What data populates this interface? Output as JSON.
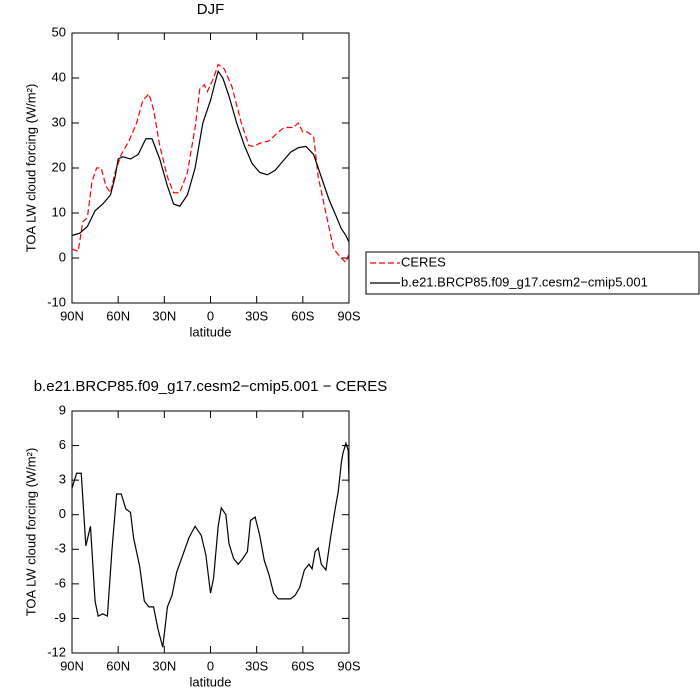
{
  "chart_data": [
    {
      "type": "line",
      "title": "DJF",
      "xlabel": "latitude",
      "ylabel": "TOA LW cloud forcing (W/m²)",
      "xlim": [
        90,
        -90
      ],
      "ylim": [
        -10,
        50
      ],
      "xticks": [
        {
          "value": 90,
          "label": "90N"
        },
        {
          "value": 60,
          "label": "60N"
        },
        {
          "value": 30,
          "label": "30N"
        },
        0,
        {
          "value": -30,
          "label": "30S"
        },
        {
          "value": -60,
          "label": "60S"
        },
        {
          "value": -90,
          "label": "90S"
        }
      ],
      "yticks": [
        -10,
        0,
        10,
        20,
        30,
        40,
        50
      ],
      "legend": "right",
      "series": [
        {
          "name": "CERES",
          "color": "#ff0000",
          "dash": true,
          "x": [
            90,
            86,
            83,
            80,
            77,
            74,
            71,
            68,
            65,
            62,
            58,
            53,
            48,
            44,
            40,
            37,
            33,
            28,
            24,
            20,
            15,
            10,
            7,
            4,
            2,
            -2,
            -5,
            -9,
            -14,
            -20,
            -25,
            -28,
            -32,
            -38,
            -44,
            -48,
            -54,
            -57,
            -60,
            -63,
            -67,
            -70,
            -75,
            -80,
            -85,
            -88,
            -90
          ],
          "values": [
            2,
            1.5,
            8,
            9,
            17,
            20,
            20,
            16,
            14.5,
            19,
            23,
            26,
            30,
            35,
            36.5,
            33,
            25,
            18,
            14.5,
            14.5,
            19,
            29,
            37.5,
            38.5,
            37,
            40,
            43,
            42,
            38,
            30,
            25,
            24.8,
            25.5,
            26,
            28,
            29,
            29,
            30,
            28,
            28,
            27,
            18,
            10,
            2,
            0,
            -1,
            1
          ]
        },
        {
          "name": "b.e21.BRCP85.f09_g17.cesm2−cmip5.001",
          "color": "#000000",
          "dash": false,
          "x": [
            90,
            85,
            80,
            75,
            70,
            65,
            62,
            60,
            57,
            52,
            47,
            42,
            38,
            33,
            28,
            24,
            20,
            15,
            10,
            5,
            0,
            -3,
            -5,
            -8,
            -12,
            -17,
            -22,
            -27,
            -32,
            -37,
            -42,
            -47,
            -52,
            -57,
            -62,
            -67,
            -72,
            -77,
            -82,
            -85,
            -88,
            -90
          ],
          "values": [
            5,
            5.5,
            7,
            10.5,
            12,
            14,
            18,
            22,
            22.5,
            22,
            23,
            26.5,
            26.5,
            22,
            16,
            12,
            11.5,
            14,
            20,
            30,
            35,
            39,
            41.5,
            40,
            36,
            30,
            25,
            21,
            19,
            18.5,
            19.5,
            21.5,
            23.5,
            24.5,
            24.8,
            23,
            18,
            13,
            9,
            6.5,
            5,
            3.5
          ]
        }
      ]
    },
    {
      "type": "line",
      "title": "b.e21.BRCP85.f09_g17.cesm2−cmip5.001  −  CERES",
      "xlabel": "latitude",
      "ylabel": "TOA LW cloud forcing (W/m²)",
      "xlim": [
        90,
        -90
      ],
      "ylim": [
        -12,
        9
      ],
      "xticks": [
        {
          "value": 90,
          "label": "90N"
        },
        {
          "value": 60,
          "label": "60N"
        },
        {
          "value": 30,
          "label": "30N"
        },
        0,
        {
          "value": -30,
          "label": "30S"
        },
        {
          "value": -60,
          "label": "60S"
        },
        {
          "value": -90,
          "label": "90S"
        }
      ],
      "yticks": [
        -12,
        -9,
        -6,
        -3,
        0,
        3,
        6,
        9
      ],
      "color": "#000000",
      "x": [
        90,
        87,
        84,
        81,
        78,
        75,
        73,
        70,
        67,
        64,
        61,
        58,
        55,
        52,
        50,
        46,
        43,
        40,
        37,
        34,
        31,
        28,
        25,
        22,
        18,
        14,
        10,
        6,
        3,
        0,
        -2,
        -5,
        -7,
        -10,
        -12,
        -15,
        -18,
        -21,
        -24,
        -26,
        -29,
        -32,
        -35,
        -38,
        -41,
        -44,
        -48,
        -52,
        -55,
        -58,
        -61,
        -64,
        -66,
        -68,
        -70,
        -72,
        -75,
        -78,
        -81,
        -83,
        -85,
        -86,
        -88,
        -89.5,
        -90
      ],
      "values": [
        2.3,
        3.6,
        3.6,
        -2.7,
        -1,
        -7.5,
        -8.8,
        -8.6,
        -8.8,
        -3,
        1.8,
        1.8,
        0.5,
        0.2,
        -2,
        -4.5,
        -7.5,
        -8,
        -8,
        -10,
        -11.5,
        -8,
        -7,
        -5,
        -3.5,
        -2,
        -1,
        -1.8,
        -3.5,
        -6.8,
        -5.5,
        -1,
        0.6,
        0,
        -2.5,
        -3.8,
        -4.3,
        -3.8,
        -3.2,
        -0.5,
        -0.2,
        -1.8,
        -4,
        -5.2,
        -6.8,
        -7.3,
        -7.3,
        -7.3,
        -7,
        -6.3,
        -4.8,
        -4.3,
        -4.7,
        -3.2,
        -2.9,
        -4.3,
        -4.8,
        -2,
        0.5,
        2,
        4.5,
        5.3,
        6.2,
        5.6,
        2.8
      ]
    }
  ]
}
